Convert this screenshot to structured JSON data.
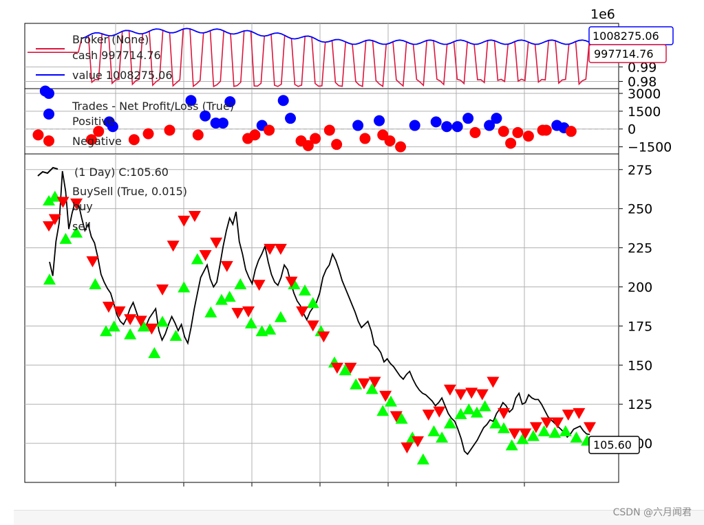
{
  "chart_data": [
    {
      "type": "line",
      "panel": "broker",
      "exponent_label": "1e6",
      "legend": [
        "Broker (None)",
        "cash 997714.76",
        "value 1008275.06"
      ],
      "legend_placement": "top-left",
      "ylim": [
        975000,
        1020000
      ],
      "y_ticks": [
        {
          "value": 990000,
          "label": "0.99"
        },
        {
          "value": 980000,
          "label": "0.98"
        }
      ],
      "series": [
        {
          "name": "cash",
          "color": "#dc143c",
          "last_label": "997714.76",
          "last": 997714.76
        },
        {
          "name": "value",
          "color": "#0000ff",
          "last_label": "1008275.06",
          "last": 1008275.06
        }
      ],
      "grid": true
    },
    {
      "type": "scatter",
      "panel": "trades",
      "legend": [
        "Trades - Net Profit/Loss (True)",
        "Positive",
        "Negative"
      ],
      "legend_placement": "top-left",
      "ylim": [
        -2100,
        3400
      ],
      "y_ticks": [
        {
          "value": 3000,
          "label": "3000"
        },
        {
          "value": 1500,
          "label": "1500"
        },
        {
          "value": 0,
          "label": "0"
        },
        {
          "value": -1500,
          "label": "−1500"
        }
      ],
      "zero_line": 0,
      "positive": {
        "color": "#0000ff",
        "points": [
          [
            5,
            3200
          ],
          [
            6,
            3000
          ],
          [
            23,
            600
          ],
          [
            24,
            200
          ],
          [
            46,
            2400
          ],
          [
            50,
            1100
          ],
          [
            53,
            500
          ],
          [
            55,
            500
          ],
          [
            57,
            2300
          ],
          [
            66,
            300
          ],
          [
            72,
            2400
          ],
          [
            74,
            900
          ],
          [
            93,
            300
          ],
          [
            99,
            700
          ],
          [
            109,
            300
          ],
          [
            115,
            600
          ],
          [
            118,
            200
          ],
          [
            121,
            200
          ],
          [
            124,
            900
          ],
          [
            130,
            300
          ],
          [
            132,
            900
          ],
          [
            149,
            300
          ],
          [
            151,
            100
          ]
        ]
      },
      "negative": {
        "color": "#ff0000",
        "points": [
          [
            3,
            -500
          ],
          [
            18,
            -900
          ],
          [
            20,
            -200
          ],
          [
            30,
            -900
          ],
          [
            34,
            -400
          ],
          [
            40,
            -100
          ],
          [
            48,
            -500
          ],
          [
            62,
            -800
          ],
          [
            64,
            -500
          ],
          [
            68,
            -100
          ],
          [
            77,
            -1000
          ],
          [
            79,
            -1400
          ],
          [
            81,
            -800
          ],
          [
            85,
            -100
          ],
          [
            87,
            -1300
          ],
          [
            95,
            -800
          ],
          [
            100,
            -500
          ],
          [
            102,
            -1000
          ],
          [
            105,
            -1500
          ],
          [
            126,
            -300
          ],
          [
            134,
            -200
          ],
          [
            136,
            -1200
          ],
          [
            138,
            -300
          ],
          [
            141,
            -600
          ],
          [
            145,
            -100
          ],
          [
            146,
            -100
          ],
          [
            153,
            -200
          ]
        ]
      },
      "grid": true
    },
    {
      "type": "line",
      "panel": "price",
      "legend": [
        "(1 Day) C:105.60",
        "BuySell (True, 0.015)",
        "buy",
        "sell"
      ],
      "legend_placement": "top-left",
      "ylim": [
        75,
        285
      ],
      "y_ticks": [
        {
          "value": 275,
          "label": "275"
        },
        {
          "value": 250,
          "label": "250"
        },
        {
          "value": 225,
          "label": "225"
        },
        {
          "value": 200,
          "label": "200"
        },
        {
          "value": 175,
          "label": "175"
        },
        {
          "value": 150,
          "label": "150"
        },
        {
          "value": 125,
          "label": "125"
        },
        {
          "value": 100,
          "label": "100"
        }
      ],
      "last_label": "105.60",
      "last": 105.6,
      "close": [
        216,
        207,
        229,
        241,
        274,
        261,
        237,
        247,
        255,
        253,
        244,
        236,
        240,
        232,
        228,
        219,
        208,
        203,
        199,
        196,
        189,
        182,
        178,
        176,
        180,
        186,
        190,
        184,
        178,
        173,
        175,
        180,
        183,
        186,
        172,
        166,
        170,
        176,
        181,
        177,
        172,
        176,
        168,
        164,
        174,
        186,
        196,
        206,
        210,
        214,
        205,
        200,
        203,
        214,
        226,
        236,
        244,
        240,
        248,
        229,
        221,
        211,
        206,
        202,
        211,
        217,
        221,
        226,
        216,
        208,
        203,
        201,
        206,
        214,
        211,
        203,
        196,
        191,
        188,
        183,
        179,
        184,
        187,
        190,
        196,
        206,
        211,
        214,
        221,
        217,
        211,
        204,
        199,
        194,
        189,
        184,
        178,
        174,
        176,
        178,
        172,
        163,
        161,
        158,
        152,
        154,
        151,
        149,
        146,
        143,
        141,
        144,
        146,
        141,
        137,
        134,
        132,
        131,
        129,
        127,
        124,
        126,
        129,
        124,
        119,
        116,
        114,
        109,
        103,
        95,
        93,
        96,
        99,
        102,
        106,
        110,
        112,
        115,
        114,
        119,
        122,
        126,
        124,
        120,
        122,
        129,
        132,
        125,
        126,
        131,
        129,
        128,
        128,
        125,
        121,
        117,
        115,
        113,
        111,
        109,
        107,
        104,
        106,
        109,
        110,
        111,
        108,
        106,
        105.6
      ],
      "buy_color": "#00ff00",
      "sell_color": "#ff0000",
      "buy": [
        [
          0,
          205
        ],
        [
          2,
          258
        ],
        [
          6,
          231
        ],
        [
          10,
          235
        ],
        [
          17,
          202
        ],
        [
          21,
          172
        ],
        [
          24,
          175
        ],
        [
          30,
          170
        ],
        [
          35,
          175
        ],
        [
          39,
          158
        ],
        [
          42,
          178
        ],
        [
          47,
          169
        ],
        [
          50,
          200
        ],
        [
          55,
          218
        ],
        [
          60,
          184
        ],
        [
          64,
          192
        ],
        [
          67,
          194
        ],
        [
          71,
          202
        ],
        [
          75,
          177
        ],
        [
          79,
          172
        ],
        [
          82,
          173
        ],
        [
          86,
          181
        ],
        [
          91,
          202
        ],
        [
          95,
          198
        ],
        [
          98,
          190
        ],
        [
          101,
          172
        ],
        [
          106,
          152
        ],
        [
          110,
          147
        ],
        [
          114,
          138
        ],
        [
          120,
          135
        ],
        [
          124,
          121
        ],
        [
          127,
          127
        ],
        [
          131,
          116
        ],
        [
          135,
          104
        ],
        [
          139,
          90
        ],
        [
          143,
          108
        ],
        [
          146,
          104
        ],
        [
          149,
          113
        ],
        [
          153,
          119
        ],
        [
          156,
          122
        ],
        [
          159,
          120
        ],
        [
          162,
          124
        ],
        [
          166,
          113
        ],
        [
          169,
          110
        ],
        [
          172,
          99
        ],
        [
          176,
          103
        ],
        [
          180,
          105
        ],
        [
          184,
          108
        ],
        [
          188,
          107
        ],
        [
          192,
          108
        ],
        [
          196,
          104
        ],
        [
          200,
          102
        ]
      ],
      "sell": [
        [
          2,
          243
        ],
        [
          5,
          254
        ],
        [
          10,
          253
        ],
        [
          16,
          216
        ],
        [
          22,
          187
        ],
        [
          26,
          184
        ],
        [
          30,
          179
        ],
        [
          34,
          178
        ],
        [
          38,
          173
        ],
        [
          42,
          198
        ],
        [
          46,
          226
        ],
        [
          50,
          242
        ],
        [
          54,
          245
        ],
        [
          58,
          220
        ],
        [
          62,
          228
        ],
        [
          66,
          213
        ],
        [
          70,
          183
        ],
        [
          74,
          184
        ],
        [
          78,
          201
        ],
        [
          82,
          224
        ],
        [
          86,
          224
        ],
        [
          90,
          203
        ],
        [
          94,
          184
        ],
        [
          98,
          175
        ],
        [
          102,
          168
        ],
        [
          107,
          148
        ],
        [
          112,
          148
        ],
        [
          117,
          138
        ],
        [
          121,
          139
        ],
        [
          125,
          130
        ],
        [
          129,
          117
        ],
        [
          133,
          97
        ],
        [
          137,
          101
        ],
        [
          141,
          118
        ],
        [
          145,
          120
        ],
        [
          149,
          134
        ],
        [
          153,
          131
        ],
        [
          157,
          132
        ],
        [
          161,
          131
        ],
        [
          165,
          139
        ],
        [
          169,
          119
        ],
        [
          173,
          106
        ],
        [
          177,
          106
        ],
        [
          181,
          110
        ],
        [
          185,
          113
        ],
        [
          189,
          113
        ],
        [
          193,
          118
        ],
        [
          197,
          119
        ],
        [
          201,
          110
        ]
      ],
      "x_ticks_count": 7,
      "grid": true
    }
  ],
  "watermark": "CSDN @六月闻君"
}
